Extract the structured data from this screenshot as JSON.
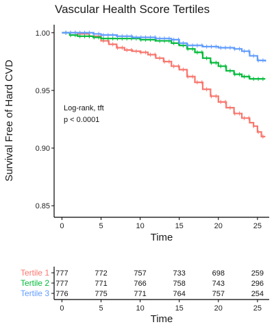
{
  "chart_data": {
    "type": "line",
    "title": "Vascular Health Score Tertiles",
    "xlabel": "Time",
    "ylabel": "Survival Free of Hard CVD",
    "xlim": [
      -1,
      26.5
    ],
    "ylim": [
      0.84,
      1.007
    ],
    "x_ticks": [
      0,
      5,
      10,
      15,
      20,
      25
    ],
    "y_ticks": [
      0.85,
      0.9,
      0.95,
      1.0
    ],
    "y_tick_labels": [
      "0.85",
      "0.90",
      "0.95",
      "1.00"
    ],
    "annotation": [
      "Log-rank, tft",
      "p < 0.0001"
    ],
    "series": [
      {
        "name": "Tertile 1",
        "color": "#F8766D",
        "x": [
          0,
          2,
          3.5,
          5,
          6,
          7,
          8,
          9,
          10,
          11,
          12,
          13,
          14,
          15,
          16,
          17,
          18,
          19,
          20,
          21,
          22,
          23,
          24,
          24.5,
          25,
          25.5,
          26
        ],
        "y": [
          1.0,
          0.999,
          0.997,
          0.993,
          0.99,
          0.987,
          0.985,
          0.984,
          0.983,
          0.981,
          0.978,
          0.975,
          0.971,
          0.968,
          0.962,
          0.957,
          0.951,
          0.945,
          0.94,
          0.935,
          0.93,
          0.926,
          0.922,
          0.919,
          0.914,
          0.91,
          0.91
        ]
      },
      {
        "name": "Tertile 2",
        "color": "#00BA38",
        "x": [
          0,
          1,
          2,
          4,
          5,
          8,
          10,
          12,
          14,
          15,
          16,
          17,
          18,
          19,
          20,
          21,
          22,
          23,
          24,
          26
        ],
        "y": [
          1.0,
          0.998,
          0.997,
          0.996,
          0.995,
          0.995,
          0.994,
          0.993,
          0.991,
          0.989,
          0.986,
          0.983,
          0.978,
          0.974,
          0.971,
          0.967,
          0.964,
          0.962,
          0.96,
          0.96
        ]
      },
      {
        "name": "Tertile 3",
        "color": "#619CFF",
        "x": [
          0,
          2,
          4,
          5,
          7,
          9,
          10,
          12,
          14,
          15,
          16,
          18,
          20,
          22,
          23,
          24,
          25,
          26
        ],
        "y": [
          1.0,
          1.0,
          0.999,
          0.998,
          0.997,
          0.996,
          0.996,
          0.995,
          0.994,
          0.991,
          0.989,
          0.988,
          0.987,
          0.986,
          0.984,
          0.98,
          0.976,
          0.975
        ]
      }
    ]
  },
  "risk_table": {
    "xlabel": "Time",
    "x_ticks": [
      0,
      5,
      10,
      15,
      20,
      25
    ],
    "rows": [
      {
        "label": "Tertile 1",
        "color": "#F8766D",
        "counts": [
          "777",
          "772",
          "757",
          "733",
          "698",
          "259"
        ]
      },
      {
        "label": "Tertile 2",
        "color": "#00BA38",
        "counts": [
          "777",
          "771",
          "766",
          "758",
          "743",
          "296"
        ]
      },
      {
        "label": "Tertile 3",
        "color": "#619CFF",
        "counts": [
          "776",
          "775",
          "771",
          "764",
          "757",
          "254"
        ]
      }
    ]
  }
}
